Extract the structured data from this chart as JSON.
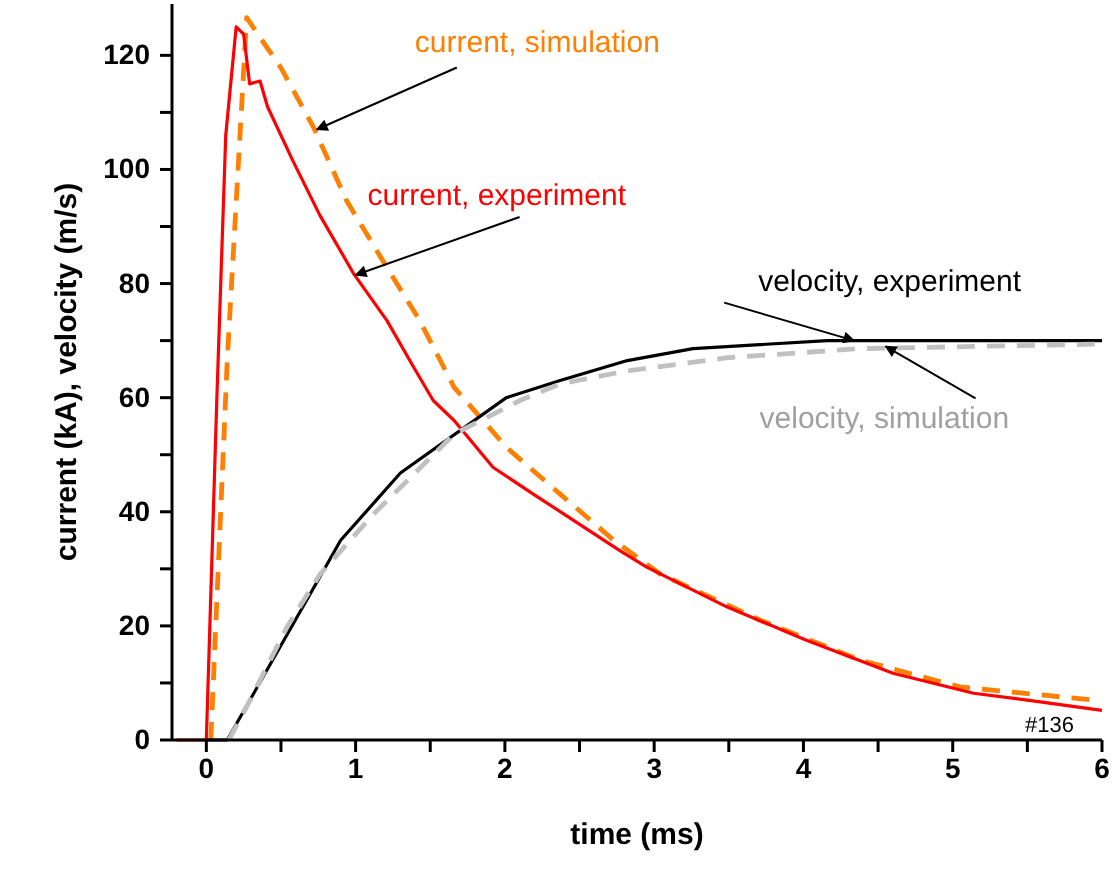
{
  "chart_data": {
    "type": "line",
    "xlabel": "time (ms)",
    "ylabel": "current (kA), velocity (m/s)",
    "xlim": [
      -0.23,
      6
    ],
    "ylim": [
      0,
      129
    ],
    "xticks": [
      0,
      {
        "value": 0.5,
        "label": null
      },
      1,
      {
        "value": 1.5,
        "label": null
      },
      2,
      {
        "value": 2.5,
        "label": null
      },
      3,
      {
        "value": 3.5,
        "label": null
      },
      4,
      {
        "value": 4.5,
        "label": null
      },
      5,
      {
        "value": 5.5,
        "label": null
      },
      6
    ],
    "yticks": [
      0,
      {
        "value": 10,
        "label": null
      },
      20,
      {
        "value": 30,
        "label": null
      },
      40,
      {
        "value": 50,
        "label": null
      },
      60,
      {
        "value": 70,
        "label": null
      },
      80,
      {
        "value": 90,
        "label": null
      },
      100,
      {
        "value": 110,
        "label": null
      },
      120
    ],
    "grid": false,
    "marker": "none",
    "series": [
      {
        "color": "#ff8000",
        "line_style": "dashed",
        "x": [
          0.03,
          0.14,
          0.27,
          0.5,
          0.72,
          0.94,
          1.21,
          1.43,
          1.66,
          2.01,
          2.37,
          2.73,
          3.04,
          3.71,
          4.38,
          5.05,
          5.94
        ],
        "values": [
          0,
          66.5,
          126.6,
          117.8,
          107.3,
          94.5,
          82.8,
          73.5,
          61.8,
          51.3,
          43.1,
          35,
          29.1,
          21,
          14,
          9.3,
          7
        ]
      },
      {
        "color": "#ff0000",
        "line_style": "solid",
        "x": [
          -0.2,
          -0.05,
          0,
          0.07,
          0.13,
          0.2,
          0.25,
          0.29,
          0.36,
          0.41,
          0.58,
          0.76,
          0.99,
          1.21,
          1.39,
          1.52,
          1.66,
          1.92,
          2.19,
          2.46,
          2.77,
          2.95,
          3.49,
          4.02,
          4.6,
          5.14,
          5.5,
          6
        ],
        "values": [
          0,
          0,
          0,
          59.5,
          106,
          125,
          123.7,
          115,
          115.5,
          111,
          101.5,
          92,
          81.6,
          73.5,
          65.3,
          59.5,
          56,
          47.8,
          43.1,
          38.5,
          33.2,
          30.3,
          23.3,
          17.5,
          11.7,
          8.2,
          7,
          5.2
        ]
      },
      {
        "color": "#000000",
        "line_style": "solid",
        "x": [
          0,
          0.14,
          0.9,
          1.3,
          2.01,
          2.37,
          2.82,
          3.26,
          4.16,
          6
        ],
        "values": [
          0,
          0,
          35,
          46.8,
          60,
          63,
          66.5,
          68.6,
          70,
          70
        ]
      },
      {
        "color": "#c0c0c0",
        "line_style": "dashed",
        "x": [
          0.15,
          0.27,
          0.54,
          0.76,
          1.12,
          1.66,
          2.1,
          2.37,
          2.82,
          3.49,
          4.38,
          6
        ],
        "values": [
          0,
          5.8,
          19.8,
          29,
          39.6,
          53.6,
          59.5,
          62.4,
          64.7,
          67,
          68.6,
          69.4
        ]
      }
    ],
    "annotations": [
      {
        "text": "current, simulation",
        "x": 0.74,
        "y": 107
      },
      {
        "text": "current, experiment",
        "x": 1.0,
        "y": 81.5
      },
      {
        "text": "velocity, experiment",
        "x": 4.34,
        "y": 70
      },
      {
        "text": "velocity, simulation",
        "x": 4.55,
        "y": 69
      },
      "#136"
    ]
  }
}
